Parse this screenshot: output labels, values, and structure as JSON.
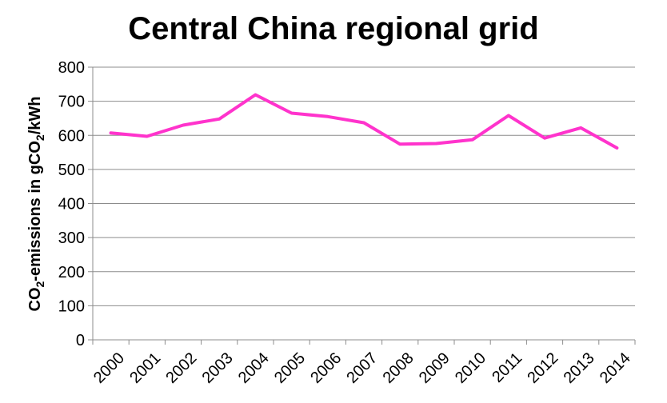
{
  "chart_data": {
    "type": "line",
    "title": "Central China regional grid",
    "ylabel_parts": [
      "CO",
      "2",
      "-emissions in gCO",
      "2",
      "/kWh"
    ],
    "xlabel": "",
    "ylim": [
      0,
      800
    ],
    "yticks": [
      0,
      100,
      200,
      300,
      400,
      500,
      600,
      700,
      800
    ],
    "grid": true,
    "legend": "none",
    "categories": [
      "2000",
      "2001",
      "2002",
      "2003",
      "2004",
      "2005",
      "2006",
      "2007",
      "2008",
      "2009",
      "2010",
      "2011",
      "2012",
      "2013",
      "2014"
    ],
    "series": [
      {
        "color": "#ff33cc",
        "values": [
          607,
          597,
          630,
          648,
          719,
          665,
          655,
          637,
          574,
          576,
          587,
          658,
          592,
          622,
          563
        ]
      }
    ]
  }
}
